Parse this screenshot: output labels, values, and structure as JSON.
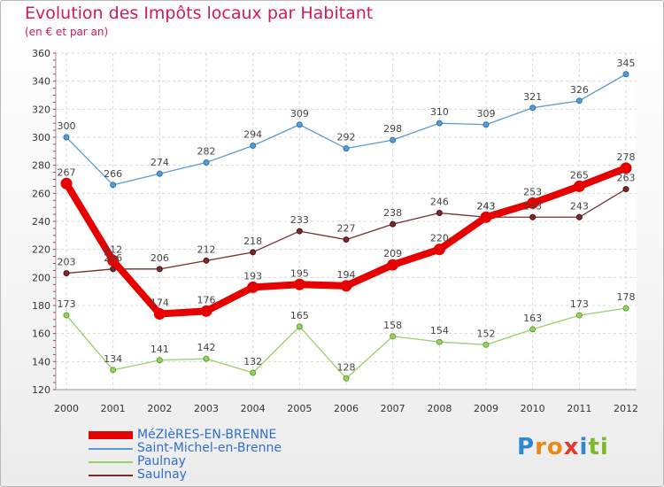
{
  "header": {
    "title": "Evolution des Impôts locaux par Habitant",
    "subtitle": "(en € et par an)"
  },
  "logo": {
    "text": "Proxiti"
  },
  "chart_data": {
    "type": "line",
    "title": "Evolution des Impôts locaux par Habitant",
    "subtitle": "(en € et par an)",
    "xlabel": "",
    "ylabel": "",
    "x": [
      "2000",
      "2001",
      "2002",
      "2003",
      "2004",
      "2005",
      "2006",
      "2007",
      "2008",
      "2009",
      "2010",
      "2011",
      "2012"
    ],
    "ylim": [
      120,
      360
    ],
    "yticks": [
      120,
      140,
      160,
      180,
      200,
      220,
      240,
      260,
      280,
      300,
      320,
      340,
      360
    ],
    "grid": true,
    "legend_position": "bottom-left",
    "series": [
      {
        "name": "MéZIèRES-EN-BRENNE",
        "color": "#e60000",
        "values": [
          267,
          212,
          174,
          176,
          193,
          195,
          194,
          209,
          220,
          243,
          253,
          265,
          278
        ]
      },
      {
        "name": "Saint-Michel-en-Brenne",
        "color": "#5b9bd5",
        "values": [
          300,
          266,
          274,
          282,
          294,
          309,
          292,
          298,
          310,
          309,
          321,
          326,
          345
        ]
      },
      {
        "name": "Paulnay",
        "color": "#99d066",
        "values": [
          173,
          134,
          141,
          142,
          132,
          165,
          128,
          158,
          154,
          152,
          163,
          173,
          178
        ]
      },
      {
        "name": "Saulnay",
        "color": "#7b2b2b",
        "values": [
          203,
          206,
          206,
          212,
          218,
          233,
          227,
          238,
          246,
          243,
          243,
          243,
          263
        ]
      }
    ]
  }
}
